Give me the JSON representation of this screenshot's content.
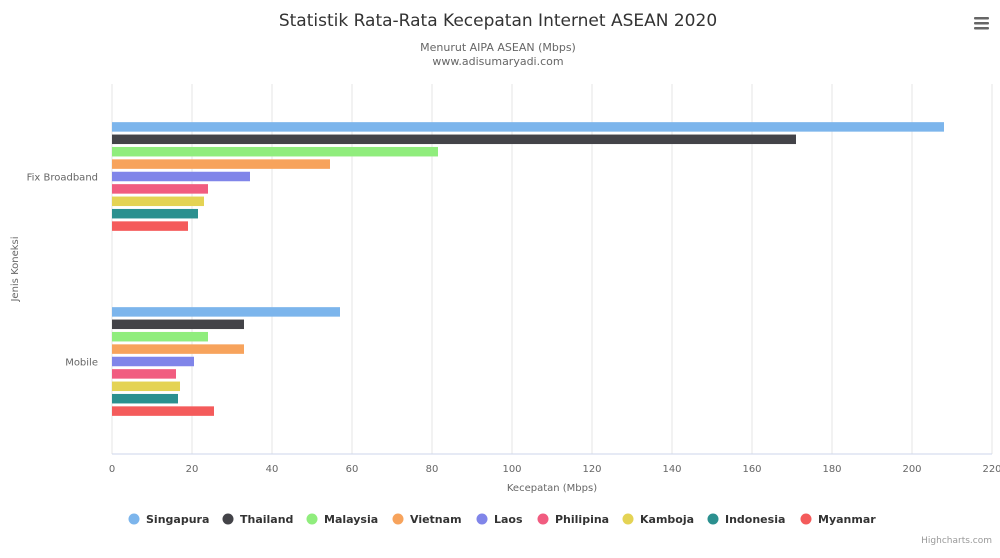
{
  "chart_data": {
    "type": "bar",
    "orientation": "horizontal",
    "title": "Statistik Rata-Rata Kecepatan Internet ASEAN 2020",
    "subtitle_lines": [
      "Menurut AIPA ASEAN (Mbps)",
      "www.adisumaryadi.com"
    ],
    "xlabel": "Kecepatan (Mbps)",
    "ylabel": "Jenis Koneksi",
    "categories": [
      "Fix Broadband",
      "Mobile"
    ],
    "xlim": [
      0,
      220
    ],
    "xticks": [
      "0",
      "20",
      "40",
      "60",
      "80",
      "100",
      "120",
      "140",
      "160",
      "180",
      "200",
      "220"
    ],
    "grid": true,
    "legend_position": "bottom",
    "series": [
      {
        "name": "Singapura",
        "color": "#7cb5ec",
        "values": [
          208,
          57
        ]
      },
      {
        "name": "Thailand",
        "color": "#434348",
        "values": [
          171,
          33
        ]
      },
      {
        "name": "Malaysia",
        "color": "#90ed7d",
        "values": [
          81.5,
          24
        ]
      },
      {
        "name": "Vietnam",
        "color": "#f7a35c",
        "values": [
          54.5,
          33
        ]
      },
      {
        "name": "Laos",
        "color": "#8085e9",
        "values": [
          34.5,
          20.5
        ]
      },
      {
        "name": "Philipina",
        "color": "#f15c80",
        "values": [
          24,
          16
        ]
      },
      {
        "name": "Kamboja",
        "color": "#e4d354",
        "values": [
          23,
          17
        ]
      },
      {
        "name": "Indonesia",
        "color": "#2b908f",
        "values": [
          21.5,
          16.5
        ]
      },
      {
        "name": "Myanmar",
        "color": "#f45b5b",
        "values": [
          19,
          25.5
        ]
      }
    ]
  },
  "credits": "Highcharts.com",
  "menu_icon": "hamburger-menu-icon"
}
